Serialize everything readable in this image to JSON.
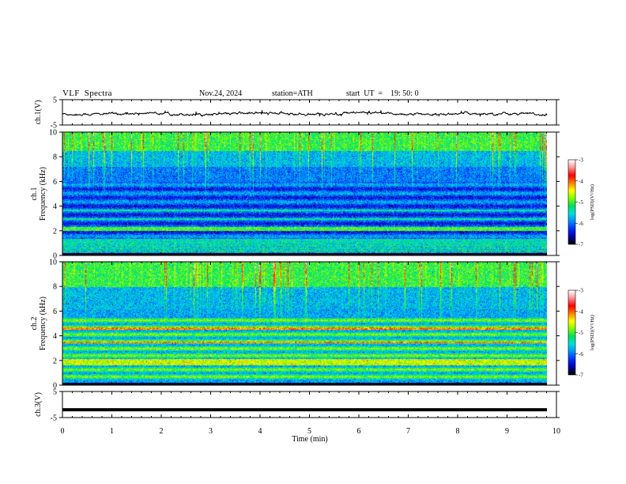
{
  "header": {
    "title": "VLF  Spectra",
    "date": "Nov.24, 2024",
    "station": "station=ATH",
    "start": "start  UT  =    19: 50: 0"
  },
  "chart_data": [
    {
      "type": "line",
      "id": "ch1",
      "ylabel": "ch.1(V)",
      "ylim": [
        -5,
        5
      ],
      "yticks": [
        "5",
        "-5"
      ],
      "xlim": [
        0,
        10
      ],
      "series": [
        {
          "shape": "noisy trace hovering near 0 V with small fluctuations"
        }
      ]
    },
    {
      "type": "heatmap",
      "id": "ch1-spectrogram",
      "ylabel": "ch.1\nFrequency  (kHz)",
      "ylim": [
        0,
        10
      ],
      "yticks": [
        "0",
        "2",
        "4",
        "6",
        "8",
        "10"
      ],
      "xlim": [
        0,
        10
      ],
      "colorbar": {
        "label": "log(PSD)(V²/Hz)",
        "range": [
          -7,
          -3
        ],
        "ticks": [
          "-3",
          "-4",
          "-5",
          "-6",
          "-7"
        ]
      }
    },
    {
      "type": "heatmap",
      "id": "ch2-spectrogram",
      "ylabel": "ch.2\nFrequency  (kHz)",
      "ylim": [
        0,
        10
      ],
      "yticks": [
        "0",
        "2",
        "4",
        "6",
        "8",
        "10"
      ],
      "xlim": [
        0,
        10
      ],
      "colorbar": {
        "label": "log(PSD)(V²/Hz)",
        "range": [
          -7,
          -3
        ],
        "ticks": [
          "-3",
          "-4",
          "-5",
          "-6",
          "-7"
        ]
      }
    },
    {
      "type": "line",
      "id": "ch3",
      "ylabel": "ch.3(V)",
      "ylim": [
        -5,
        5
      ],
      "yticks": [
        "5",
        "-5"
      ],
      "xlim": [
        0,
        10
      ],
      "series": [
        {
          "shape": "flat thick trace near -2 V"
        }
      ]
    }
  ],
  "xaxis": {
    "label": "Time  (min)",
    "ticks": [
      "0",
      "1",
      "2",
      "3",
      "4",
      "5",
      "6",
      "7",
      "8",
      "9",
      "10"
    ]
  },
  "colors": {
    "colormap": [
      "#000000",
      "#0000b0",
      "#0030ff",
      "#0090ff",
      "#00e0e0",
      "#00e060",
      "#80ff00",
      "#ffff00",
      "#ff8000",
      "#ff0000",
      "#ff9090",
      "#ffffff"
    ]
  }
}
